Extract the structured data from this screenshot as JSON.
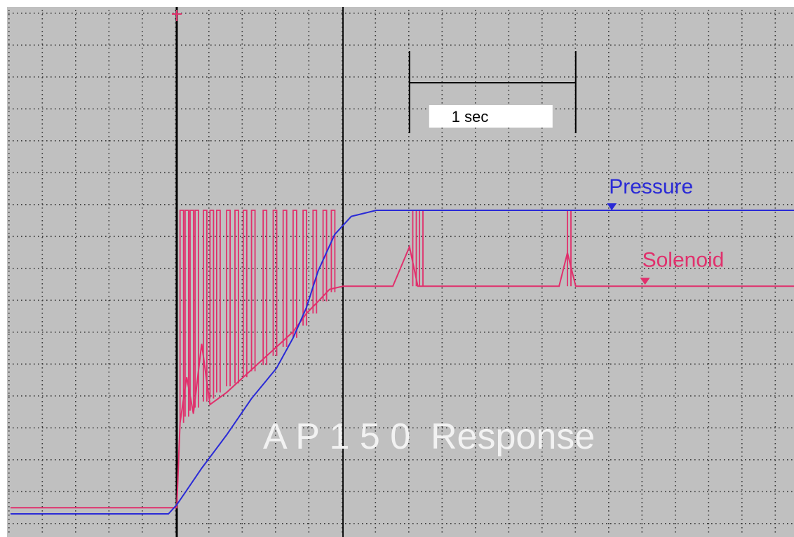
{
  "chart_data": {
    "type": "line",
    "title": "A P 1 5 0  Response",
    "scale_bar_label": "1 sec",
    "time_unit": "sec",
    "grid": true,
    "background_color": "#c0c0c0",
    "frame_color": "#ffffff",
    "annotations": [
      "Pressure",
      "Solenoid"
    ],
    "series": [
      {
        "name": "Pressure",
        "color": "#2a2ad6",
        "marker": "pressure-marker",
        "x": [
          0.0,
          0.95,
          1.0,
          1.05,
          1.15,
          1.3,
          1.45,
          1.6,
          1.7,
          1.78,
          1.85,
          1.95,
          2.05,
          2.2,
          3.0,
          4.0,
          4.75
        ],
        "y": [
          0.0,
          0.0,
          0.03,
          0.07,
          0.15,
          0.26,
          0.38,
          0.48,
          0.58,
          0.68,
          0.8,
          0.92,
          0.98,
          1.0,
          1.0,
          1.0,
          1.0
        ]
      },
      {
        "name": "Solenoid",
        "color": "#e0306c",
        "marker": "solenoid-marker",
        "x": [
          0.0,
          1.0,
          1.02,
          1.06,
          1.1,
          1.15,
          1.2,
          1.3,
          1.4,
          1.5,
          1.6,
          1.7,
          1.78,
          1.85,
          1.92,
          2.0,
          2.3,
          2.4,
          2.45,
          2.5,
          3.3,
          3.35,
          3.4,
          4.75
        ],
        "y": [
          0.02,
          0.02,
          0.3,
          0.45,
          0.33,
          0.56,
          0.36,
          0.4,
          0.45,
          0.5,
          0.55,
          0.6,
          0.66,
          0.7,
          0.74,
          0.75,
          0.75,
          0.88,
          0.75,
          0.75,
          0.75,
          0.86,
          0.75,
          0.75
        ]
      }
    ],
    "solenoid_pulses": [
      {
        "t": 1.02,
        "low": 0.3
      },
      {
        "t": 1.05,
        "low": 0.32
      },
      {
        "t": 1.08,
        "low": 0.34
      },
      {
        "t": 1.11,
        "low": 0.35
      },
      {
        "t": 1.16,
        "low": 0.37
      },
      {
        "t": 1.2,
        "low": 0.38
      },
      {
        "t": 1.24,
        "low": 0.4
      },
      {
        "t": 1.3,
        "low": 0.42
      },
      {
        "t": 1.35,
        "low": 0.43
      },
      {
        "t": 1.4,
        "low": 0.45
      },
      {
        "t": 1.45,
        "low": 0.47
      },
      {
        "t": 1.52,
        "low": 0.49
      },
      {
        "t": 1.58,
        "low": 0.52
      },
      {
        "t": 1.64,
        "low": 0.55
      },
      {
        "t": 1.7,
        "low": 0.58
      },
      {
        "t": 1.76,
        "low": 0.62
      },
      {
        "t": 1.82,
        "low": 0.66
      },
      {
        "t": 1.88,
        "low": 0.7
      },
      {
        "t": 1.93,
        "low": 0.73
      }
    ],
    "extra_pulses": [
      {
        "t": 2.42,
        "low": 0.75
      },
      {
        "t": 2.46,
        "low": 0.75
      },
      {
        "t": 3.35,
        "low": 0.75
      }
    ],
    "cursors": [
      1.0,
      2.0
    ],
    "scale_bar": {
      "start": 2.4,
      "end": 3.4
    }
  }
}
